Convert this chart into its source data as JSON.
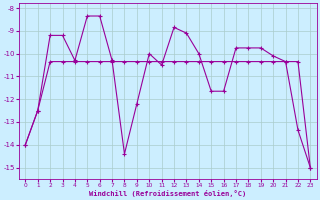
{
  "xlabel": "Windchill (Refroidissement éolien,°C)",
  "bg_color": "#cceeff",
  "grid_color": "#aacccc",
  "line_color": "#990099",
  "ylim": [
    -15.5,
    -7.8
  ],
  "xlim": [
    -0.5,
    23.5
  ],
  "yticks": [
    -15,
    -14,
    -13,
    -12,
    -11,
    -10,
    -9,
    -8
  ],
  "xticks": [
    0,
    1,
    2,
    3,
    4,
    5,
    6,
    7,
    8,
    9,
    10,
    11,
    12,
    13,
    14,
    15,
    16,
    17,
    18,
    19,
    20,
    21,
    22,
    23
  ],
  "line1_x": [
    0,
    1,
    2,
    3,
    4,
    5,
    6,
    7,
    8,
    9,
    10,
    11,
    12,
    13,
    14,
    15,
    16,
    17,
    18,
    19,
    20,
    21,
    22,
    23
  ],
  "line1_y": [
    -14.0,
    -12.5,
    -9.2,
    -9.2,
    -10.3,
    -8.35,
    -8.35,
    -10.3,
    -14.4,
    -12.2,
    -10.0,
    -10.5,
    -8.85,
    -9.1,
    -10.0,
    -11.65,
    -11.65,
    -9.75,
    -9.75,
    -9.75,
    -10.1,
    -10.35,
    -10.35,
    -15.0
  ],
  "line2_x": [
    0,
    1,
    2,
    3,
    4,
    5,
    6,
    7,
    8,
    9,
    10,
    11,
    12,
    13,
    14,
    15,
    16,
    17,
    18,
    19,
    20,
    21,
    22,
    23
  ],
  "line2_y": [
    -14.0,
    -12.5,
    -10.35,
    -10.35,
    -10.35,
    -10.35,
    -10.35,
    -10.35,
    -10.35,
    -10.35,
    -10.35,
    -10.35,
    -10.35,
    -10.35,
    -10.35,
    -10.35,
    -10.35,
    -10.35,
    -10.35,
    -10.35,
    -10.35,
    -10.35,
    -13.35,
    -15.0
  ]
}
